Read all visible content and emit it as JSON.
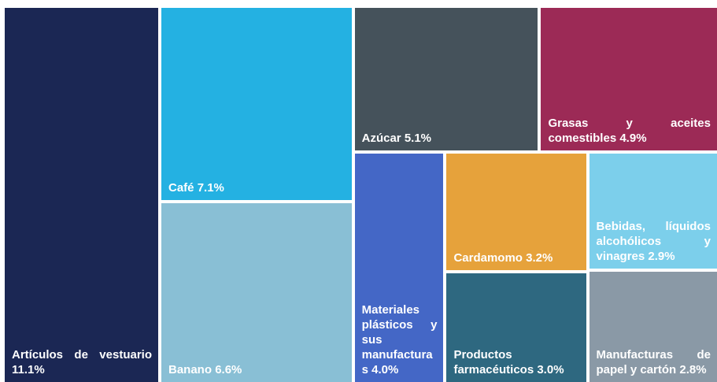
{
  "chart_data": {
    "type": "treemap",
    "categories": [
      "Artículos de vestuario",
      "Café",
      "Banano",
      "Azúcar",
      "Grasas y aceites comestibles",
      "Materiales plásticos y sus manufacturas",
      "Cardamomo",
      "Productos farmacéuticos",
      "Bebidas, líquidos alcohólicos y vinagres",
      "Manufacturas de papel y cartón"
    ],
    "values": [
      11.1,
      7.1,
      6.6,
      5.1,
      4.9,
      4.0,
      3.2,
      3.0,
      2.9,
      2.8
    ],
    "value_labels": [
      "11.1%",
      "7.1%",
      "6.6%",
      "5.1%",
      "4.9%",
      "4.0%",
      "3.2%",
      "3.0%",
      "2.9%",
      "2.8%"
    ],
    "colors": [
      "#1b2754",
      "#24b1e2",
      "#89bfd5",
      "#45525b",
      "#9c2a56",
      "#4467c6",
      "#e6a23b",
      "#2e6880",
      "#7ccfeb",
      "#8a99a6"
    ]
  }
}
